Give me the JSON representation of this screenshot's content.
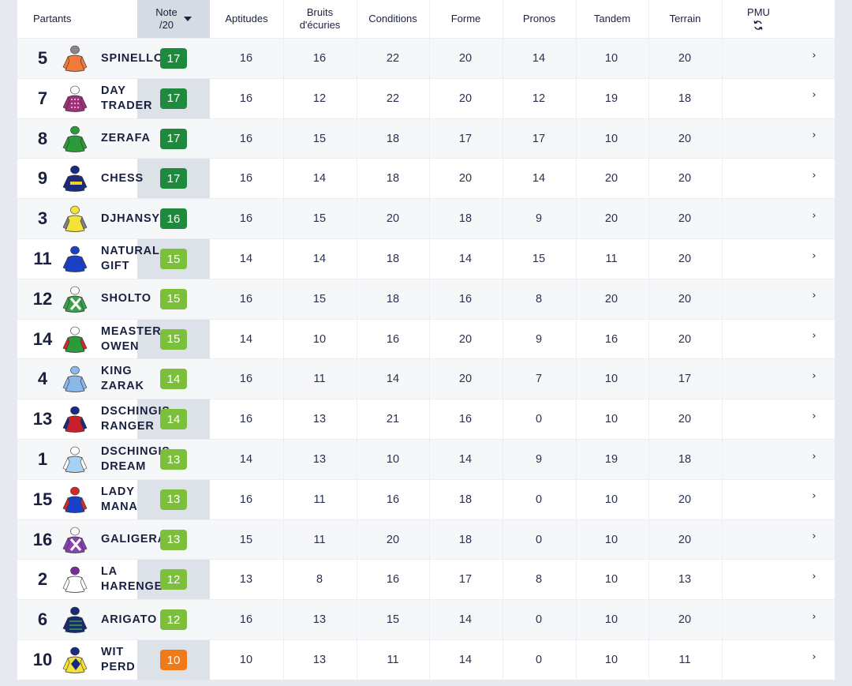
{
  "header": {
    "partants": "Partants",
    "note_line1": "Note",
    "note_line2": "/20",
    "aptitudes": "Aptitudes",
    "bruits_line1": "Bruits",
    "bruits_line2": "d'écuries",
    "conditions": "Conditions",
    "forme": "Forme",
    "pronos": "Pronos",
    "tandem": "Tandem",
    "terrain": "Terrain",
    "pmu": "PMU",
    "pmu_icon": "refresh-icon"
  },
  "colors": {
    "dark_green": "#1f8a3d",
    "light_green": "#7cbf3a",
    "orange": "#f07a18"
  },
  "rows": [
    {
      "num": "5",
      "name": "SPINELLO",
      "note": "17",
      "level": "dark",
      "silk": [
        "#f07a3a",
        "#f07a3a",
        "#888888",
        "plain"
      ],
      "aptitudes": "16",
      "bruits": "16",
      "conditions": "22",
      "forme": "20",
      "pronos": "14",
      "tandem": "10",
      "terrain": "20"
    },
    {
      "num": "7",
      "name": "DAY\nTRADER",
      "note": "17",
      "level": "dark",
      "silk": [
        "#a0307a",
        "#a0307a",
        "#ffffff",
        "check"
      ],
      "aptitudes": "16",
      "bruits": "12",
      "conditions": "22",
      "forme": "20",
      "pronos": "12",
      "tandem": "19",
      "terrain": "18"
    },
    {
      "num": "8",
      "name": "ZERAFA",
      "note": "17",
      "level": "dark",
      "silk": [
        "#2a9a3a",
        "#2a9a3a",
        "#2a9a3a",
        "plain"
      ],
      "aptitudes": "16",
      "bruits": "15",
      "conditions": "18",
      "forme": "17",
      "pronos": "17",
      "tandem": "10",
      "terrain": "20"
    },
    {
      "num": "9",
      "name": "CHESS",
      "note": "17",
      "level": "dark",
      "silk": [
        "#1a2a80",
        "#1a2a80",
        "#1a2a80",
        "band"
      ],
      "aptitudes": "16",
      "bruits": "14",
      "conditions": "18",
      "forme": "20",
      "pronos": "14",
      "tandem": "20",
      "terrain": "20"
    },
    {
      "num": "3",
      "name": "DJHANSY",
      "note": "16",
      "level": "dark",
      "silk": [
        "#f2e23a",
        "#808080",
        "#f2e23a",
        "plain"
      ],
      "aptitudes": "16",
      "bruits": "15",
      "conditions": "20",
      "forme": "18",
      "pronos": "9",
      "tandem": "20",
      "terrain": "20"
    },
    {
      "num": "11",
      "name": "NATURAL\nGIFT",
      "note": "15",
      "level": "light",
      "silk": [
        "#1a40c8",
        "#1a40c8",
        "#1a40c8",
        "plain"
      ],
      "aptitudes": "14",
      "bruits": "14",
      "conditions": "18",
      "forme": "14",
      "pronos": "15",
      "tandem": "11",
      "terrain": "20"
    },
    {
      "num": "12",
      "name": "SHOLTO",
      "note": "15",
      "level": "light",
      "silk": [
        "#3aa04a",
        "#3aa04a",
        "#ffffff",
        "cross"
      ],
      "aptitudes": "16",
      "bruits": "15",
      "conditions": "18",
      "forme": "16",
      "pronos": "8",
      "tandem": "20",
      "terrain": "20"
    },
    {
      "num": "14",
      "name": "MEASTER\nOWEN",
      "note": "15",
      "level": "light",
      "silk": [
        "#2a9a3a",
        "#d02a2a",
        "#ffffff",
        "plain"
      ],
      "aptitudes": "14",
      "bruits": "10",
      "conditions": "16",
      "forme": "20",
      "pronos": "9",
      "tandem": "16",
      "terrain": "20"
    },
    {
      "num": "4",
      "name": "KING\nZARAK",
      "note": "14",
      "level": "light",
      "silk": [
        "#8ab8e8",
        "#8ab8e8",
        "#8ab8e8",
        "plain"
      ],
      "aptitudes": "16",
      "bruits": "11",
      "conditions": "14",
      "forme": "20",
      "pronos": "7",
      "tandem": "10",
      "terrain": "17"
    },
    {
      "num": "13",
      "name": "DSCHINGIS\nRANGER",
      "note": "14",
      "level": "light",
      "silk": [
        "#c8202a",
        "#1a2a80",
        "#1a2a80",
        "plain"
      ],
      "aptitudes": "16",
      "bruits": "13",
      "conditions": "21",
      "forme": "16",
      "pronos": "0",
      "tandem": "10",
      "terrain": "20"
    },
    {
      "num": "1",
      "name": "DSCHINGIS\nDREAM",
      "note": "13",
      "level": "light",
      "silk": [
        "#a8d0f0",
        "#ffffff",
        "#ffffff",
        "plain"
      ],
      "aptitudes": "14",
      "bruits": "13",
      "conditions": "10",
      "forme": "14",
      "pronos": "9",
      "tandem": "19",
      "terrain": "18"
    },
    {
      "num": "15",
      "name": "LADY\nMANA",
      "note": "13",
      "level": "light",
      "silk": [
        "#1a40c8",
        "#d02a2a",
        "#d02a2a",
        "plain"
      ],
      "aptitudes": "16",
      "bruits": "11",
      "conditions": "16",
      "forme": "18",
      "pronos": "0",
      "tandem": "10",
      "terrain": "20"
    },
    {
      "num": "16",
      "name": "GALIGERA",
      "note": "13",
      "level": "light",
      "silk": [
        "#8a40b0",
        "#8a40b0",
        "#ffffff",
        "cross"
      ],
      "aptitudes": "15",
      "bruits": "11",
      "conditions": "20",
      "forme": "18",
      "pronos": "0",
      "tandem": "10",
      "terrain": "20"
    },
    {
      "num": "2",
      "name": "LA\nHARENGERE",
      "note": "12",
      "level": "light",
      "silk": [
        "#ffffff",
        "#ffffff",
        "#7a2a9a",
        "plain"
      ],
      "aptitudes": "13",
      "bruits": "8",
      "conditions": "16",
      "forme": "17",
      "pronos": "8",
      "tandem": "10",
      "terrain": "13"
    },
    {
      "num": "6",
      "name": "ARIGATO",
      "note": "12",
      "level": "light",
      "silk": [
        "#1a2a70",
        "#1a2a70",
        "#1a2a70",
        "hoops"
      ],
      "aptitudes": "16",
      "bruits": "13",
      "conditions": "15",
      "forme": "14",
      "pronos": "0",
      "tandem": "10",
      "terrain": "20"
    },
    {
      "num": "10",
      "name": "WIT\nPERD",
      "note": "10",
      "level": "orange",
      "silk": [
        "#f2e23a",
        "#f2e23a",
        "#1a2a80",
        "diamond"
      ],
      "aptitudes": "10",
      "bruits": "13",
      "conditions": "11",
      "forme": "14",
      "pronos": "0",
      "tandem": "10",
      "terrain": "11"
    }
  ]
}
